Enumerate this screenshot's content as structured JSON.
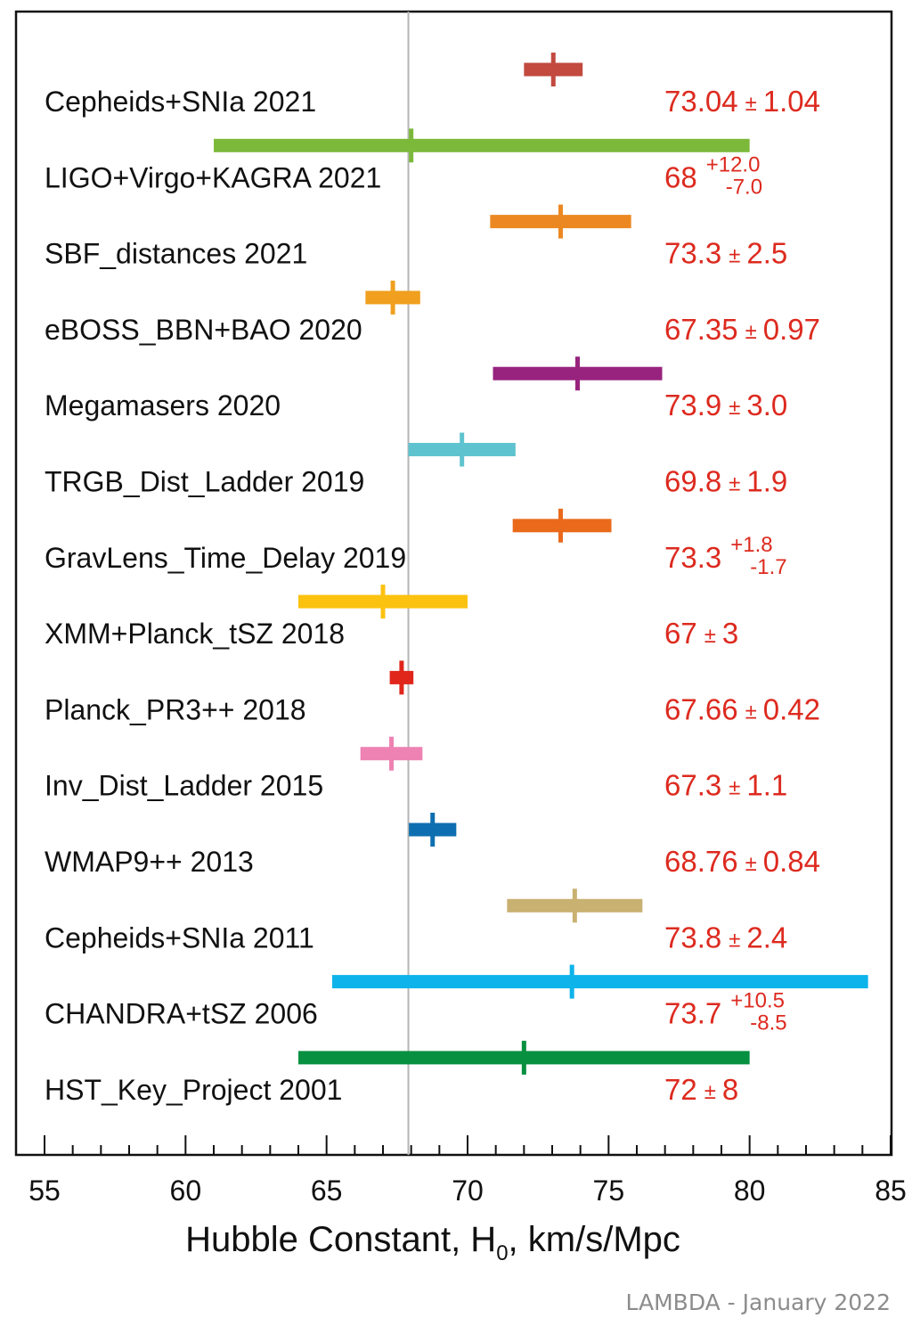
{
  "chart_data": {
    "type": "errorbar",
    "title": "",
    "xlabel_main": "Hubble Constant, H",
    "xlabel_sub": "0",
    "xlabel_tail": ", km/s/Mpc",
    "xlim": [
      55,
      85
    ],
    "xticks_major": [
      55,
      60,
      65,
      70,
      75,
      80,
      85
    ],
    "xticks_minor_step": 1,
    "reference_value": 67.9,
    "reference_color": "#b5b5b5",
    "measurements": [
      {
        "label": "Cepheids+SNIa 2021",
        "value": 73.04,
        "lower": 1.04,
        "upper": 1.04,
        "value_text": "73.04",
        "sym_text": "1.04",
        "color": "#c24a3f"
      },
      {
        "label": "LIGO+Virgo+KAGRA 2021",
        "value": 68,
        "lower": 7.0,
        "upper": 12.0,
        "value_text": "68",
        "plus_text": "+12.0",
        "minus_text": "-7.0",
        "color": "#7cb93b"
      },
      {
        "label": "SBF_distances 2021",
        "value": 73.3,
        "lower": 2.5,
        "upper": 2.5,
        "value_text": "73.3",
        "sym_text": "2.5",
        "color": "#ec8822"
      },
      {
        "label": "eBOSS_BBN+BAO 2020",
        "value": 67.35,
        "lower": 0.97,
        "upper": 0.97,
        "value_text": "67.35",
        "sym_text": "0.97",
        "color": "#f0a01e"
      },
      {
        "label": "Megamasers 2020",
        "value": 73.9,
        "lower": 3.0,
        "upper": 3.0,
        "value_text": "73.9",
        "sym_text": "3.0",
        "color": "#98237e"
      },
      {
        "label": "TRGB_Dist_Ladder 2019",
        "value": 69.8,
        "lower": 1.9,
        "upper": 1.9,
        "value_text": "69.8",
        "sym_text": "1.9",
        "color": "#5fc3cf"
      },
      {
        "label": "GravLens_Time_Delay 2019",
        "value": 73.3,
        "lower": 1.7,
        "upper": 1.8,
        "value_text": "73.3",
        "plus_text": "+1.8",
        "minus_text": "-1.7",
        "color": "#ea6a1c"
      },
      {
        "label": "XMM+Planck_tSZ 2018",
        "value": 67,
        "lower": 3,
        "upper": 3,
        "value_text": "67",
        "sym_text": "3",
        "color": "#fbc20f"
      },
      {
        "label": "Planck_PR3++ 2018",
        "value": 67.66,
        "lower": 0.42,
        "upper": 0.42,
        "value_text": "67.66",
        "sym_text": "0.42",
        "color": "#e0261b"
      },
      {
        "label": "Inv_Dist_Ladder 2015",
        "value": 67.3,
        "lower": 1.1,
        "upper": 1.1,
        "value_text": "67.3",
        "sym_text": "1.1",
        "color": "#ee82b3"
      },
      {
        "label": "WMAP9++ 2013",
        "value": 68.76,
        "lower": 0.84,
        "upper": 0.84,
        "value_text": "68.76",
        "sym_text": "0.84",
        "color": "#0e6fb0"
      },
      {
        "label": "Cepheids+SNIa 2011",
        "value": 73.8,
        "lower": 2.4,
        "upper": 2.4,
        "value_text": "73.8",
        "sym_text": "2.4",
        "color": "#c9b172"
      },
      {
        "label": "CHANDRA+tSZ 2006",
        "value": 73.7,
        "lower": 8.5,
        "upper": 10.5,
        "value_text": "73.7",
        "plus_text": "+10.5",
        "minus_text": "-8.5",
        "color": "#0eb3ea"
      },
      {
        "label": "HST_Key_Project 2001",
        "value": 72,
        "lower": 8,
        "upper": 8,
        "value_text": "72",
        "sym_text": "8",
        "color": "#069040"
      }
    ]
  },
  "plus_minus_symbol": "±",
  "credit": "LAMBDA - January 2022"
}
